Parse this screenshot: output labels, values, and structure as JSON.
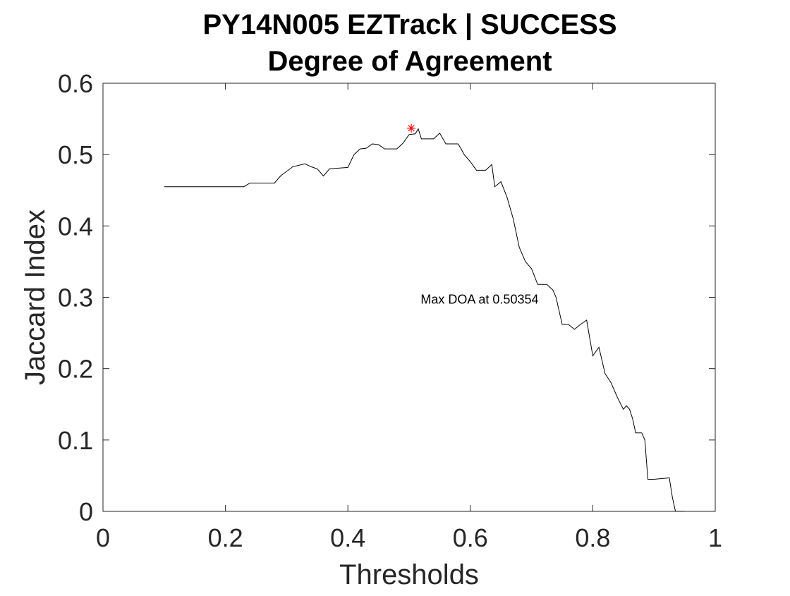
{
  "chart_data": {
    "type": "line",
    "title": "PY14N005 EZTrack | SUCCESS",
    "subtitle": "Degree of Agreement",
    "xlabel": "Thresholds",
    "ylabel": "Jaccard Index",
    "xlim": [
      0,
      1
    ],
    "ylim": [
      0,
      0.6
    ],
    "xticks": [
      0,
      0.2,
      0.4,
      0.6,
      0.8,
      1
    ],
    "xtick_labels": [
      "0",
      "0.2",
      "0.4",
      "0.6",
      "0.8",
      "1"
    ],
    "yticks": [
      0,
      0.1,
      0.2,
      0.3,
      0.4,
      0.5,
      0.6
    ],
    "ytick_labels": [
      "0",
      "0.1",
      "0.2",
      "0.3",
      "0.4",
      "0.5",
      "0.6"
    ],
    "grid": false,
    "series": [
      {
        "color": "#000000",
        "x": [
          0.1,
          0.23,
          0.24,
          0.28,
          0.29,
          0.31,
          0.33,
          0.34,
          0.35,
          0.36,
          0.37,
          0.4,
          0.41,
          0.42,
          0.43,
          0.44,
          0.45,
          0.46,
          0.48,
          0.49,
          0.5,
          0.51,
          0.515,
          0.52,
          0.54,
          0.55,
          0.56,
          0.57,
          0.58,
          0.585,
          0.59,
          0.6,
          0.61,
          0.625,
          0.635,
          0.64,
          0.65,
          0.66,
          0.67,
          0.68,
          0.69,
          0.7,
          0.71,
          0.725,
          0.735,
          0.74,
          0.75,
          0.76,
          0.77,
          0.78,
          0.79,
          0.8,
          0.81,
          0.82,
          0.83,
          0.84,
          0.85,
          0.855,
          0.86,
          0.865,
          0.87,
          0.88,
          0.885,
          0.89,
          0.9,
          0.925,
          0.93,
          0.935,
          0.95
        ],
        "y": [
          0.455,
          0.455,
          0.46,
          0.46,
          0.47,
          0.483,
          0.487,
          0.483,
          0.48,
          0.47,
          0.48,
          0.482,
          0.5,
          0.508,
          0.509,
          0.515,
          0.514,
          0.508,
          0.508,
          0.516,
          0.528,
          0.529,
          0.536,
          0.522,
          0.522,
          0.53,
          0.515,
          0.515,
          0.515,
          0.508,
          0.5,
          0.49,
          0.478,
          0.478,
          0.486,
          0.455,
          0.462,
          0.44,
          0.41,
          0.37,
          0.35,
          0.34,
          0.318,
          0.318,
          0.31,
          0.3,
          0.262,
          0.262,
          0.255,
          0.262,
          0.268,
          0.218,
          0.23,
          0.193,
          0.18,
          0.16,
          0.143,
          0.148,
          0.143,
          0.13,
          0.11,
          0.11,
          0.1,
          0.045,
          0.045,
          0.047,
          0.02,
          0.0,
          0.0
        ]
      }
    ],
    "marker": {
      "x": 0.50354,
      "y": 0.537,
      "symbol": "*",
      "color": "#ff0000"
    },
    "annotation": {
      "text": "Max DOA at 0.50354",
      "x": 0.55,
      "y": 0.297
    }
  }
}
